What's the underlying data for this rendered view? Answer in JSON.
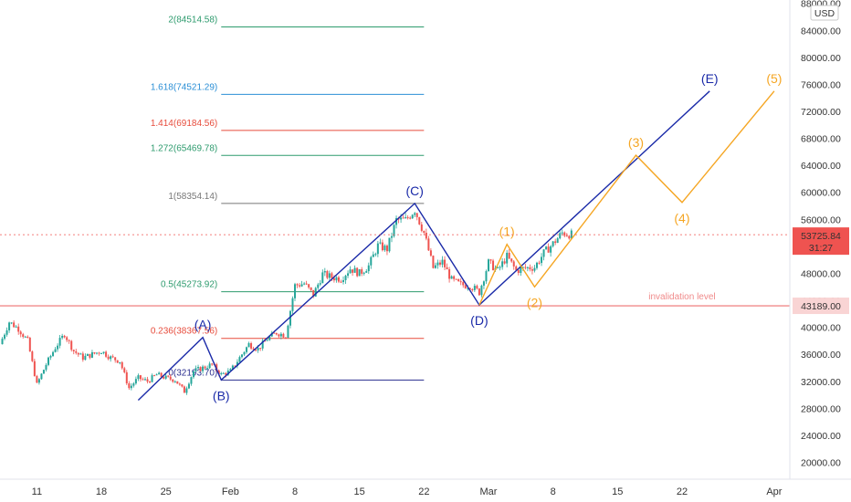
{
  "chart_data": {
    "type": "candlestick",
    "currency": "USD",
    "y_ticks": [
      20000,
      24000,
      28000,
      32000,
      36000,
      40000,
      44000,
      48000,
      52000,
      56000,
      60000,
      64000,
      68000,
      72000,
      76000,
      80000,
      84000,
      88000
    ],
    "y_tick_labels": [
      "20000.00",
      "24000.00",
      "28000.00",
      "32000.00",
      "36000.00",
      "40000.00",
      "44000.00",
      "48000.00",
      "52000.00",
      "56000.00",
      "60000.00",
      "64000.00",
      "68000.00",
      "72000.00",
      "76000.00",
      "80000.00",
      "84000.00",
      "88000.00"
    ],
    "ylim": [
      17500,
      88500
    ],
    "x_ticks": [
      {
        "label": "11",
        "date": "2021-01-11"
      },
      {
        "label": "18",
        "date": "2021-01-18"
      },
      {
        "label": "25",
        "date": "2021-01-25"
      },
      {
        "label": "Feb",
        "date": "2021-02-01"
      },
      {
        "label": "8",
        "date": "2021-02-08"
      },
      {
        "label": "15",
        "date": "2021-02-15"
      },
      {
        "label": "22",
        "date": "2021-02-22"
      },
      {
        "label": "Mar",
        "date": "2021-03-01"
      },
      {
        "label": "8",
        "date": "2021-03-08"
      },
      {
        "label": "15",
        "date": "2021-03-15"
      },
      {
        "label": "22",
        "date": "2021-03-22"
      },
      {
        "label": "Apr",
        "date": "2021-04-01"
      }
    ],
    "xlim": [
      "2021-01-07",
      "2021-04-02"
    ],
    "price_path": [
      [
        "2021-01-07",
        37500
      ],
      [
        "2021-01-08",
        40800
      ],
      [
        "2021-01-09",
        39800
      ],
      [
        "2021-01-10",
        38000
      ],
      [
        "2021-01-11",
        31500
      ],
      [
        "2021-01-12",
        34500
      ],
      [
        "2021-01-13",
        37000
      ],
      [
        "2021-01-14",
        39000
      ],
      [
        "2021-01-15",
        36500
      ],
      [
        "2021-01-16",
        35500
      ],
      [
        "2021-01-17",
        36000
      ],
      [
        "2021-01-18",
        36500
      ],
      [
        "2021-01-19",
        35500
      ],
      [
        "2021-01-20",
        35000
      ],
      [
        "2021-01-21",
        31000
      ],
      [
        "2021-01-22",
        32500
      ],
      [
        "2021-01-23",
        32000
      ],
      [
        "2021-01-24",
        33000
      ],
      [
        "2021-01-25",
        32500
      ],
      [
        "2021-01-26",
        32200
      ],
      [
        "2021-01-27",
        30500
      ],
      [
        "2021-01-28",
        33500
      ],
      [
        "2021-01-29",
        34000
      ],
      [
        "2021-01-30",
        34500
      ],
      [
        "2021-01-31",
        33000
      ],
      [
        "2021-02-01",
        33500
      ],
      [
        "2021-02-02",
        35500
      ],
      [
        "2021-02-03",
        37500
      ],
      [
        "2021-02-04",
        36800
      ],
      [
        "2021-02-05",
        38300
      ],
      [
        "2021-02-06",
        39200
      ],
      [
        "2021-02-07",
        38800
      ],
      [
        "2021-02-08",
        46200
      ],
      [
        "2021-02-09",
        46500
      ],
      [
        "2021-02-10",
        44800
      ],
      [
        "2021-02-11",
        47900
      ],
      [
        "2021-02-12",
        47400
      ],
      [
        "2021-02-13",
        47200
      ],
      [
        "2021-02-14",
        48700
      ],
      [
        "2021-02-15",
        48000
      ],
      [
        "2021-02-16",
        49100
      ],
      [
        "2021-02-17",
        52100
      ],
      [
        "2021-02-18",
        51600
      ],
      [
        "2021-02-19",
        55900
      ],
      [
        "2021-02-20",
        55900
      ],
      [
        "2021-02-21",
        57400
      ],
      [
        "2021-02-22",
        54000
      ],
      [
        "2021-02-23",
        48800
      ],
      [
        "2021-02-24",
        49700
      ],
      [
        "2021-02-25",
        47000
      ],
      [
        "2021-02-26",
        46300
      ],
      [
        "2021-02-27",
        46200
      ],
      [
        "2021-02-28",
        45200
      ],
      [
        "2021-03-01",
        49600
      ],
      [
        "2021-03-02",
        48400
      ],
      [
        "2021-03-03",
        50500
      ],
      [
        "2021-03-04",
        48400
      ],
      [
        "2021-03-05",
        48800
      ],
      [
        "2021-03-06",
        48900
      ],
      [
        "2021-03-07",
        51000
      ],
      [
        "2021-03-08",
        52400
      ],
      [
        "2021-03-09",
        54000
      ],
      [
        "2021-03-10",
        53725.84
      ]
    ],
    "fib_levels": [
      {
        "label": "0(32193.70)",
        "value": 32193.7,
        "color": "#2a2e8f",
        "x_start": "2021-01-31",
        "x_end": "2021-02-22"
      },
      {
        "label": "0.236(38367.56)",
        "value": 38367.56,
        "color": "#e74c3c",
        "x_start": "2021-01-31",
        "x_end": "2021-02-22"
      },
      {
        "label": "0.5(45273.92)",
        "value": 45273.92,
        "color": "#2e9b6e",
        "x_start": "2021-01-31",
        "x_end": "2021-02-22"
      },
      {
        "label": "1(58354.14)",
        "value": 58354.14,
        "color": "#777777",
        "x_start": "2021-01-31",
        "x_end": "2021-02-22"
      },
      {
        "label": "1.272(65469.78)",
        "value": 65469.78,
        "color": "#2e9b6e",
        "x_start": "2021-01-31",
        "x_end": "2021-02-22"
      },
      {
        "label": "1.414(69184.56)",
        "value": 69184.56,
        "color": "#e74c3c",
        "x_start": "2021-01-31",
        "x_end": "2021-02-22"
      },
      {
        "label": "1.618(74521.29)",
        "value": 74521.29,
        "color": "#2b8fd6",
        "x_start": "2021-01-31",
        "x_end": "2021-02-22"
      },
      {
        "label": "2(84514.58)",
        "value": 84514.58,
        "color": "#2e9b6e",
        "x_start": "2021-01-31",
        "x_end": "2021-02-22"
      }
    ],
    "primary_waves": {
      "color": "#1a2aa8",
      "points": [
        {
          "label": "",
          "date": "2021-01-22",
          "value": 29200
        },
        {
          "label": "(A)",
          "date": "2021-01-29",
          "value": 38500
        },
        {
          "label": "(B)",
          "date": "2021-01-31",
          "value": 32200
        },
        {
          "label": "(C)",
          "date": "2021-02-21",
          "value": 58350
        },
        {
          "label": "(D)",
          "date": "2021-02-28",
          "value": 43300
        },
        {
          "label": "(E)",
          "date": "2021-03-25",
          "value": 75000
        }
      ],
      "label_offsets": [
        null,
        "above",
        "below",
        "above",
        "below",
        "above"
      ]
    },
    "sub_waves": {
      "color": "#f5a623",
      "points": [
        {
          "label": "",
          "date": "2021-02-28",
          "value": 43300
        },
        {
          "label": "(1)",
          "date": "2021-03-03",
          "value": 52300
        },
        {
          "label": "(2)",
          "date": "2021-03-06",
          "value": 46000
        },
        {
          "label": "(3)",
          "date": "2021-03-17",
          "value": 65500
        },
        {
          "label": "(4)",
          "date": "2021-03-22",
          "value": 58500
        },
        {
          "label": "(5)",
          "date": "2021-04-01",
          "value": 75000
        }
      ],
      "label_offsets": [
        null,
        "above",
        "below",
        "above",
        "below",
        "above"
      ]
    },
    "invalidation": {
      "label": "invalidation level",
      "value": 43189.0,
      "price_label": "43189.00",
      "color": "#f08a8a"
    },
    "last_price": {
      "value": 53725.84,
      "price_label": "53725.84",
      "countdown": "31:27",
      "color": "#ef5350"
    },
    "colors": {
      "up": "#26a69a",
      "down": "#ef5350"
    }
  }
}
